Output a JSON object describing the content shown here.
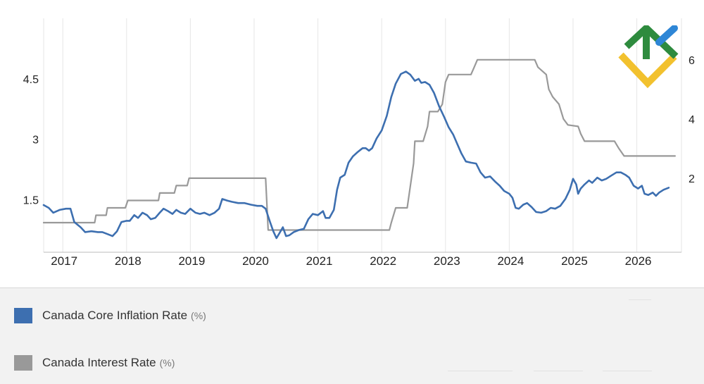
{
  "chart_data": {
    "type": "line",
    "title": "",
    "x_ticks": [
      "2017",
      "2018",
      "2019",
      "2020",
      "2021",
      "2022",
      "2023",
      "2024",
      "2025",
      "2026"
    ],
    "xlim": [
      2016.7,
      2026.7
    ],
    "y_left": {
      "ticks": [
        1.5,
        3,
        4.5
      ],
      "tick_labels": [
        "1.5",
        "3",
        "4.5"
      ],
      "lim": [
        0.2,
        6.0
      ]
    },
    "y_right": {
      "ticks": [
        2,
        4,
        6
      ],
      "tick_labels": [
        "2",
        "4",
        "6"
      ],
      "lim": [
        -0.5,
        7.4
      ]
    },
    "grid": "vertical",
    "series": [
      {
        "name": "Canada Core Inflation Rate",
        "unit": "(%)",
        "axis": "left",
        "color": "#3d6fb0",
        "points": [
          [
            2016.7,
            1.37
          ],
          [
            2016.78,
            1.3
          ],
          [
            2016.85,
            1.18
          ],
          [
            2016.95,
            1.25
          ],
          [
            2017.05,
            1.28
          ],
          [
            2017.12,
            1.28
          ],
          [
            2017.18,
            0.95
          ],
          [
            2017.28,
            0.82
          ],
          [
            2017.35,
            0.7
          ],
          [
            2017.45,
            0.72
          ],
          [
            2017.55,
            0.7
          ],
          [
            2017.62,
            0.7
          ],
          [
            2017.7,
            0.65
          ],
          [
            2017.78,
            0.6
          ],
          [
            2017.85,
            0.72
          ],
          [
            2017.92,
            0.95
          ],
          [
            2018.0,
            0.98
          ],
          [
            2018.05,
            0.98
          ],
          [
            2018.12,
            1.12
          ],
          [
            2018.18,
            1.05
          ],
          [
            2018.25,
            1.18
          ],
          [
            2018.32,
            1.12
          ],
          [
            2018.38,
            1.02
          ],
          [
            2018.45,
            1.05
          ],
          [
            2018.52,
            1.18
          ],
          [
            2018.58,
            1.28
          ],
          [
            2018.65,
            1.22
          ],
          [
            2018.72,
            1.15
          ],
          [
            2018.78,
            1.25
          ],
          [
            2018.85,
            1.18
          ],
          [
            2018.92,
            1.15
          ],
          [
            2019.0,
            1.28
          ],
          [
            2019.08,
            1.18
          ],
          [
            2019.15,
            1.15
          ],
          [
            2019.22,
            1.18
          ],
          [
            2019.3,
            1.12
          ],
          [
            2019.38,
            1.18
          ],
          [
            2019.45,
            1.28
          ],
          [
            2019.5,
            1.52
          ],
          [
            2019.58,
            1.48
          ],
          [
            2019.65,
            1.45
          ],
          [
            2019.75,
            1.42
          ],
          [
            2019.85,
            1.42
          ],
          [
            2019.95,
            1.38
          ],
          [
            2020.05,
            1.35
          ],
          [
            2020.12,
            1.35
          ],
          [
            2020.18,
            1.28
          ],
          [
            2020.25,
            0.95
          ],
          [
            2020.3,
            0.72
          ],
          [
            2020.35,
            0.55
          ],
          [
            2020.4,
            0.68
          ],
          [
            2020.45,
            0.82
          ],
          [
            2020.5,
            0.6
          ],
          [
            2020.55,
            0.62
          ],
          [
            2020.62,
            0.7
          ],
          [
            2020.7,
            0.75
          ],
          [
            2020.78,
            0.78
          ],
          [
            2020.85,
            1.02
          ],
          [
            2020.92,
            1.15
          ],
          [
            2021.0,
            1.12
          ],
          [
            2021.08,
            1.22
          ],
          [
            2021.12,
            1.05
          ],
          [
            2021.18,
            1.05
          ],
          [
            2021.25,
            1.25
          ],
          [
            2021.3,
            1.75
          ],
          [
            2021.35,
            2.05
          ],
          [
            2021.42,
            2.12
          ],
          [
            2021.48,
            2.42
          ],
          [
            2021.55,
            2.58
          ],
          [
            2021.62,
            2.68
          ],
          [
            2021.7,
            2.78
          ],
          [
            2021.75,
            2.78
          ],
          [
            2021.8,
            2.72
          ],
          [
            2021.85,
            2.78
          ],
          [
            2021.92,
            3.02
          ],
          [
            2022.0,
            3.22
          ],
          [
            2022.08,
            3.58
          ],
          [
            2022.15,
            4.05
          ],
          [
            2022.22,
            4.38
          ],
          [
            2022.3,
            4.62
          ],
          [
            2022.38,
            4.68
          ],
          [
            2022.45,
            4.6
          ],
          [
            2022.52,
            4.45
          ],
          [
            2022.58,
            4.5
          ],
          [
            2022.62,
            4.4
          ],
          [
            2022.68,
            4.42
          ],
          [
            2022.75,
            4.35
          ],
          [
            2022.82,
            4.15
          ],
          [
            2022.9,
            3.82
          ],
          [
            2022.98,
            3.55
          ],
          [
            2023.05,
            3.3
          ],
          [
            2023.12,
            3.12
          ],
          [
            2023.18,
            2.9
          ],
          [
            2023.25,
            2.65
          ],
          [
            2023.32,
            2.45
          ],
          [
            2023.4,
            2.42
          ],
          [
            2023.48,
            2.4
          ],
          [
            2023.55,
            2.18
          ],
          [
            2023.62,
            2.05
          ],
          [
            2023.7,
            2.08
          ],
          [
            2023.78,
            1.95
          ],
          [
            2023.85,
            1.85
          ],
          [
            2023.92,
            1.72
          ],
          [
            2024.0,
            1.65
          ],
          [
            2024.05,
            1.55
          ],
          [
            2024.1,
            1.3
          ],
          [
            2024.15,
            1.28
          ],
          [
            2024.22,
            1.38
          ],
          [
            2024.28,
            1.42
          ],
          [
            2024.35,
            1.32
          ],
          [
            2024.42,
            1.2
          ],
          [
            2024.5,
            1.18
          ],
          [
            2024.58,
            1.22
          ],
          [
            2024.65,
            1.3
          ],
          [
            2024.72,
            1.28
          ],
          [
            2024.8,
            1.35
          ],
          [
            2024.88,
            1.52
          ],
          [
            2024.95,
            1.75
          ],
          [
            2025.0,
            2.02
          ],
          [
            2025.05,
            1.88
          ],
          [
            2025.08,
            1.65
          ],
          [
            2025.12,
            1.78
          ],
          [
            2025.18,
            1.88
          ],
          [
            2025.25,
            1.98
          ],
          [
            2025.3,
            1.92
          ],
          [
            2025.38,
            2.05
          ],
          [
            2025.45,
            1.98
          ],
          [
            2025.52,
            2.02
          ],
          [
            2025.6,
            2.1
          ],
          [
            2025.68,
            2.18
          ],
          [
            2025.75,
            2.18
          ],
          [
            2025.82,
            2.12
          ],
          [
            2025.88,
            2.05
          ],
          [
            2025.95,
            1.85
          ],
          [
            2026.02,
            1.78
          ],
          [
            2026.08,
            1.85
          ],
          [
            2026.12,
            1.65
          ],
          [
            2026.18,
            1.62
          ],
          [
            2026.25,
            1.68
          ],
          [
            2026.3,
            1.6
          ],
          [
            2026.35,
            1.68
          ],
          [
            2026.42,
            1.75
          ],
          [
            2026.5,
            1.8
          ]
        ]
      },
      {
        "name": "Canada Interest Rate",
        "unit": "(%)",
        "axis": "right",
        "color": "#999999",
        "points": [
          [
            2016.7,
            0.5
          ],
          [
            2017.5,
            0.5
          ],
          [
            2017.52,
            0.75
          ],
          [
            2017.68,
            0.75
          ],
          [
            2017.7,
            1.0
          ],
          [
            2017.98,
            1.0
          ],
          [
            2018.02,
            1.25
          ],
          [
            2018.5,
            1.25
          ],
          [
            2018.52,
            1.5
          ],
          [
            2018.75,
            1.5
          ],
          [
            2018.78,
            1.75
          ],
          [
            2018.95,
            1.75
          ],
          [
            2018.98,
            2.0
          ],
          [
            2019.0,
            2.0
          ],
          [
            2020.18,
            2.0
          ],
          [
            2020.22,
            0.25
          ],
          [
            2022.12,
            0.25
          ],
          [
            2022.15,
            0.5
          ],
          [
            2022.22,
            1.0
          ],
          [
            2022.4,
            1.0
          ],
          [
            2022.5,
            2.5
          ],
          [
            2022.52,
            3.25
          ],
          [
            2022.65,
            3.25
          ],
          [
            2022.72,
            3.75
          ],
          [
            2022.75,
            4.25
          ],
          [
            2022.88,
            4.25
          ],
          [
            2022.95,
            4.5
          ],
          [
            2023.0,
            5.25
          ],
          [
            2023.05,
            5.5
          ],
          [
            2023.4,
            5.5
          ],
          [
            2023.45,
            5.75
          ],
          [
            2023.5,
            6.0
          ],
          [
            2024.4,
            6.0
          ],
          [
            2024.45,
            5.75
          ],
          [
            2024.58,
            5.5
          ],
          [
            2024.62,
            5.0
          ],
          [
            2024.68,
            4.75
          ],
          [
            2024.78,
            4.5
          ],
          [
            2024.85,
            4.0
          ],
          [
            2024.92,
            3.8
          ],
          [
            2025.08,
            3.75
          ],
          [
            2025.12,
            3.5
          ],
          [
            2025.18,
            3.25
          ],
          [
            2025.65,
            3.25
          ],
          [
            2025.72,
            3.0
          ],
          [
            2025.8,
            2.75
          ],
          [
            2025.85,
            2.75
          ],
          [
            2026.6,
            2.75
          ]
        ]
      }
    ]
  },
  "legend": {
    "items": [
      {
        "label": "Canada Core Inflation Rate",
        "unit": "(%)",
        "color": "#3d6fb0"
      },
      {
        "label": "Canada Interest Rate",
        "unit": "(%)",
        "color": "#999999"
      }
    ]
  },
  "logo": {
    "icon": "brand-logo-icon",
    "colors": [
      "#2e8b3e",
      "#2e86d6",
      "#f2c12e"
    ]
  }
}
